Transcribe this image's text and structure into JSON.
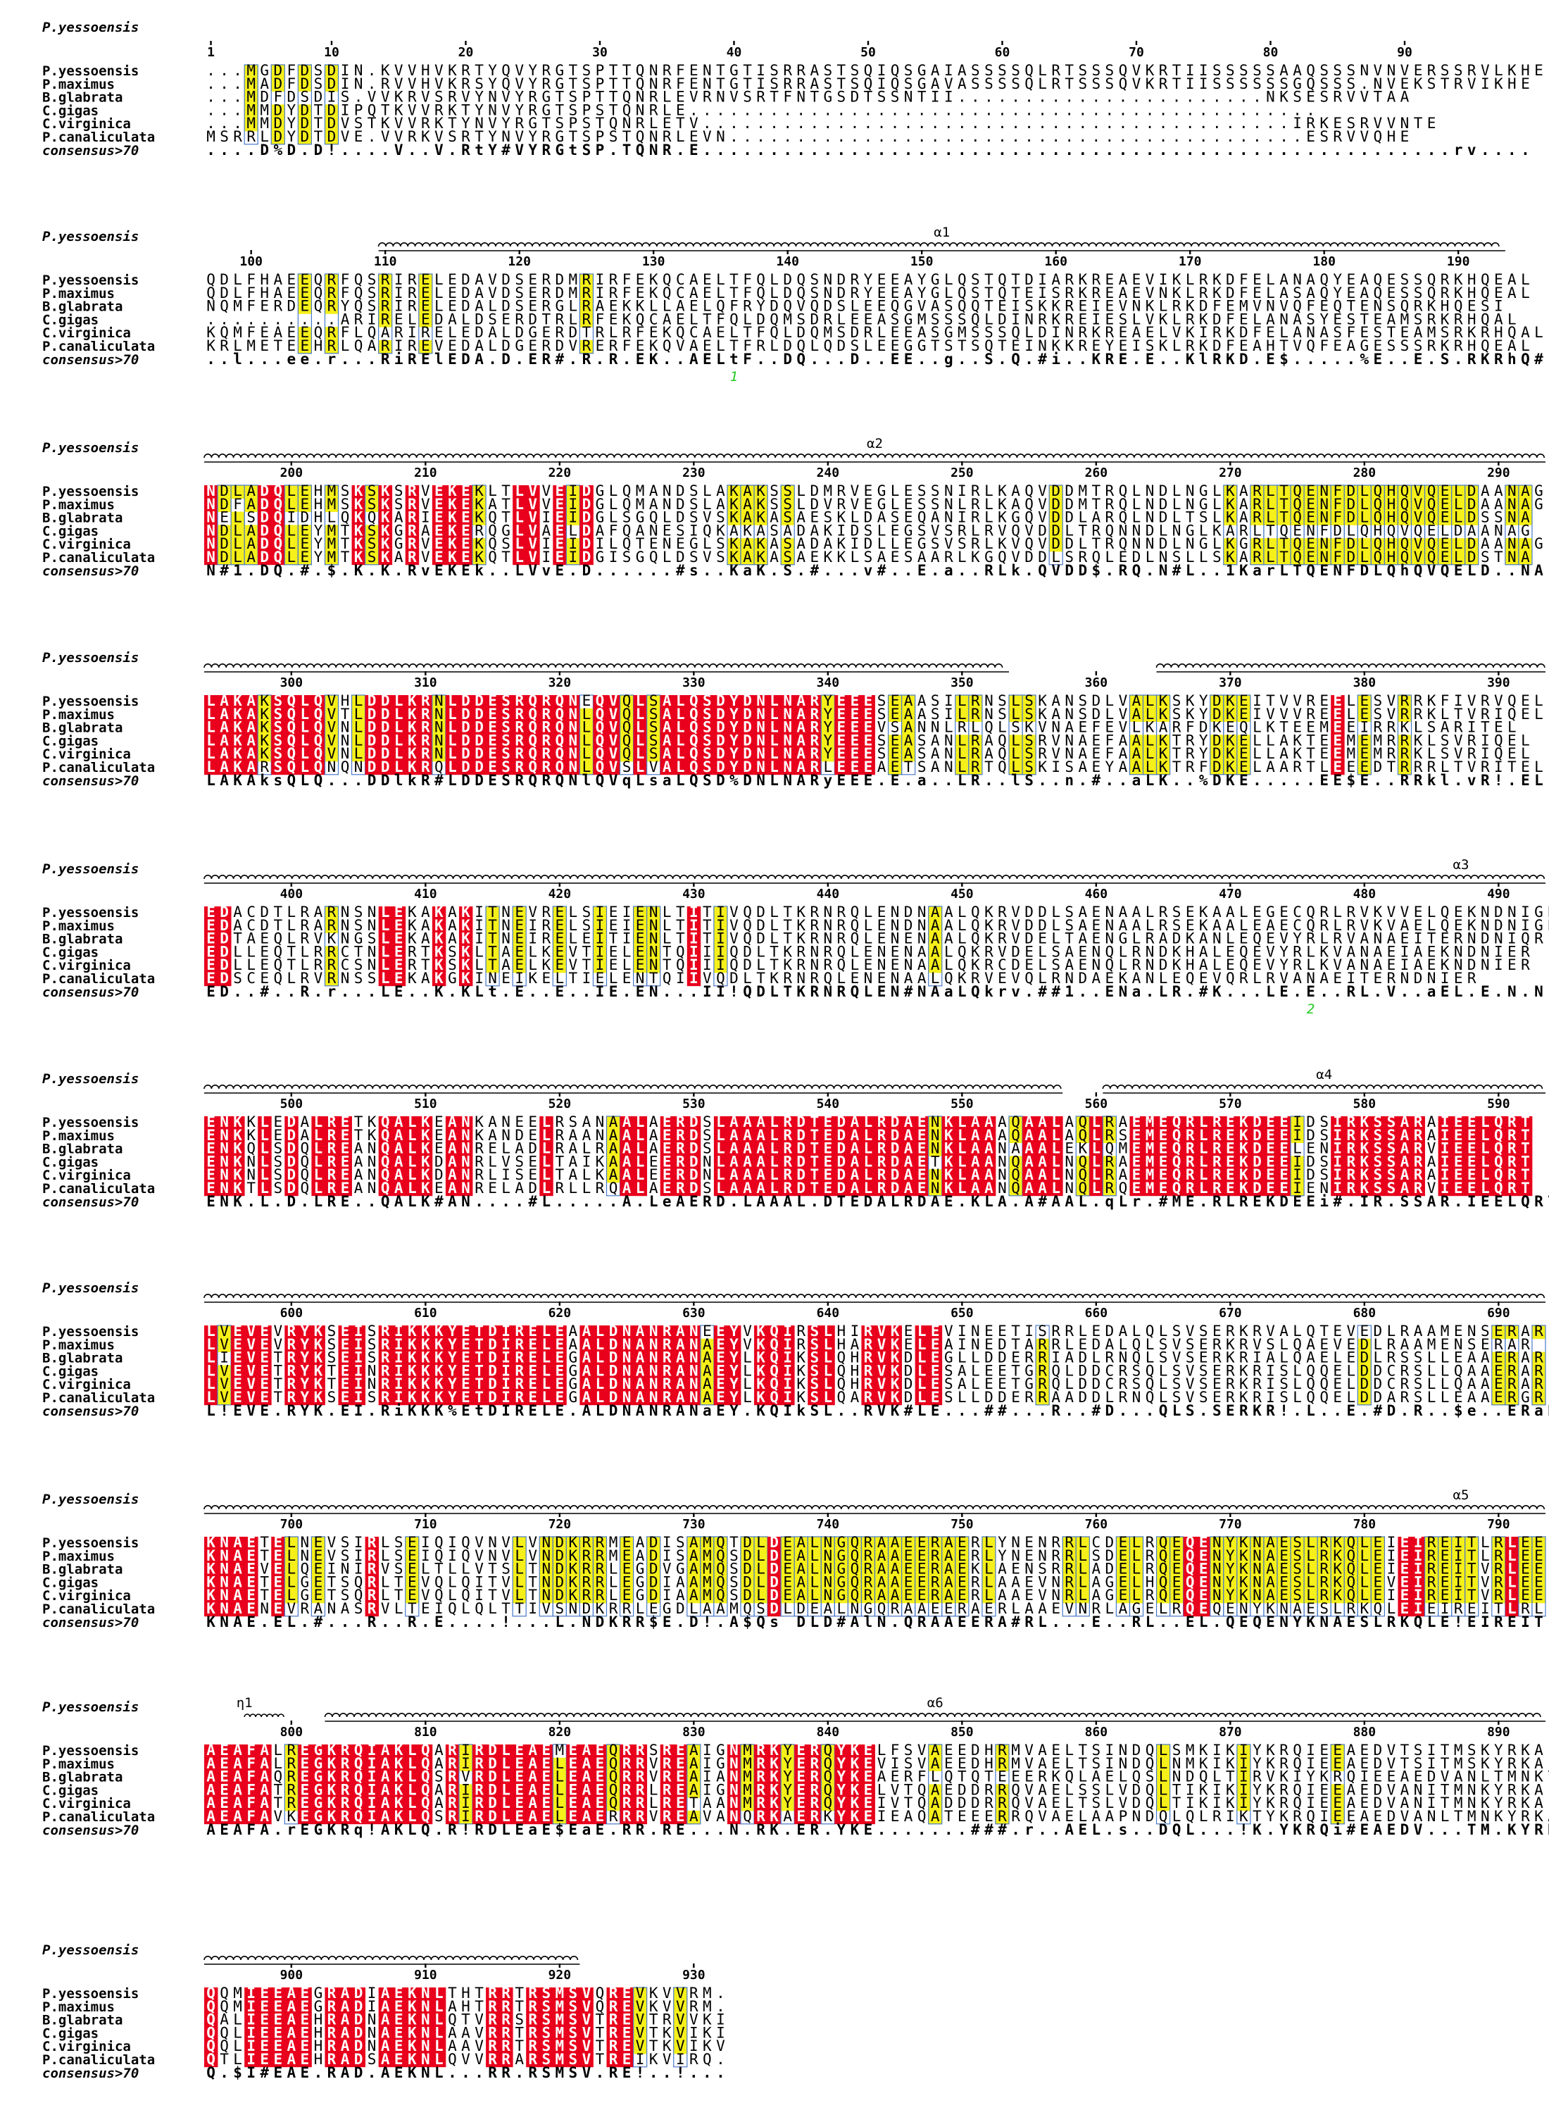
{
  "reference": "P.yessoensis",
  "consensus_label": "consensus>70",
  "sequence_names": [
    "P.yessoensis",
    "P.maximus",
    "B.glabrata",
    "C.gigas",
    "C.virginica",
    "P.canaliculata"
  ],
  "colors": {
    "identical": "#e8001c",
    "similar": "#f5ef1a",
    "frame": "#4878c8",
    "similar_border": "#2d55c8",
    "marker": "#22cc22"
  },
  "blocks": [
    {
      "start": 1,
      "seqs": [
        "...MGDFDSDIN.KVVHVKRTYQVYRGTSPTTQNRFENTGTISRRASTSQIQSGAIASSSSQLRTSSSQVKRTIISSSSSAAQSSSNVNVERSSRVLKHE",
        "...MADFDSDIN.RVVHVKRSYQVYRGTSPTTQNRFENTGTISRRASTSQIQSGAVASSSSQLRTSSSQVKRTIISSSSSSGQSSS.NVEKSTRVIKHE",
        "...MDFDSDIS.VVKRVSRVYNVYRGTSPTTQNRLEVRNVSRTFNTGSDTSSNTII.......................NKSESRVVTAA",
        "...MMDYDTDIPQTKVVRKTYNVYRGTSPSTQNRLE...............................................",
        "...MMDYDTDVSTKVVRKTYNVYRGTSPSTQNRLETV............................................IRKESRVVNTE",
        "MSRRLDYDTDVE.VVRKVSRTYNVYRGTSPSTQNRLEVN...........................................ESRVVQHE"
      ],
      "consensus": "....D%D.D!....V..V.RtY#VYRGtSP.TQNR.E........................................................rv....",
      "ticks": [
        1,
        10,
        20,
        30,
        40,
        50,
        60,
        70,
        80,
        90
      ],
      "structure": [],
      "markers": []
    },
    {
      "start": 97,
      "seqs": [
        "QDLFHAEEQRFQSRIRELEDAVDSERDMRIRFEKQCAELTFQLDQSNDRYEEAYGLQSTQTDIARKREAEVIKLRKDFELANAQYEAQESSQRKHQEAL",
        "QDLFHAEEQRFQSRIRELEDAVDSERDMRIRFEKQCAELTFQLDQSNDRYEEAYGLQSTQTEISRKREAEVNKLRKDFELASAQYEAQESSQRKHQEAL",
        "NQMFERDEQRYQSRIRELEDALDSERGLRAEKKLLAELQFRYDQVQDSLEEQGVASQQTEISKKREIEVNKLRKDFEMVNVQFEQTENSQRKHQESI",
        "..........ARIRELEDALDSERDTRLRFEKQCAELTFQLDQMSDRLEEASGMSSSQLDINRKREIESLVKLRKDFELANASYESTEAMSRKRHQAL",
        "KQMFEAEEQRFLQARIRELEDALDGERDTRLRFEKQCAELTFQLDQMSDRLEEASGMSSSQLDINRKREAELVKIRKDFELANASFESTEAMSRKRHQAL",
        "KRLMETEEHRLQARIREVEDALDGERDVRERFEKQVAELTFRLDQLQDSLEEGGTSTSQTEINKKREYEISKLRKDFEAHTVQFEAGESSSRKRHQEAL"
      ],
      "consensus": "..l...ee.r...RiRElEDA.D.ER#.R.R.EK..AELtF..DQ...D..EE..g..S.Q.#i..KRE.E..KlRKD.E$.....%E..E.S.RKRhQ#..",
      "ticks": [
        100,
        110,
        120,
        130,
        140,
        150,
        160,
        170,
        180,
        190
      ],
      "structure": [
        {
          "type": "helix",
          "label": "α1",
          "from": 110,
          "to": 193
        }
      ],
      "markers": [
        {
          "label": "1",
          "pos": 136
        }
      ]
    },
    {
      "start": 194,
      "seqs": [
        "NDLADQLEHMSKSKSRVEKEKLTLVVEIDGLQMANDSLAKAKSSLDMRVEGLESSNIRLKAQVDDMTRQLNDLNGLKARLTQENFDLQHQVQELDAANAG",
        "NDFADQLEHMSKSKSRVEKEKATLVVEIDGLQMANDSLAKAKSSLDVRVEGLESSNLRLKAQVDDMTRQLNDLNGLKARLTQENFDLQHQVQELDAANAG",
        "NELSDQIDHLQKQKARIEKEKQTLVIEIDGLSGQLDSVSKAKASAESKLDASEQANIRLKGQVDDLARQLNDLTSLKARLTQENFDLQHQVQELDSSNA",
        "NDLADQLEYMTKSKGRAEKERQGLVAELDAFQANESIQKAKASADAKIDSLEGSVSRLRVQVDDLTRQNNDLNGLKARLTQENFDLQHQVQELDAANAG",
        "NDLADQLEYMTKSKGRVEKEKQSLVIEIDILQTENEGLSKAKASADAKIDLLEGSVSRLKVQVDDLTRQNNDLNGLKGRLTQENFDLQHQVQELDAANAG",
        "NDLADQLEYMTKSKARVEKEKQTLVIEIDGISGQLDSVSKAKASAEKKLSAESAARLKGQVDDLSRQLEDLNSLLSKARLTQENFDLQHQVQELDSTNA"
      ],
      "consensus": "N#1.DQ.#.$.K.K.RvEKEk..LVvE.D......#s..KaK.S.#...v#..E.a..RLk.QVDD$.RQ.N#L..1KarLTQENFDLQhQVQELD..NA.",
      "ticks": [
        200,
        210,
        220,
        230,
        240,
        250,
        260,
        270,
        280,
        290
      ],
      "structure": [
        {
          "type": "helix",
          "label": "α2",
          "from": 194,
          "to": 293
        }
      ],
      "markers": []
    },
    {
      "start": 294,
      "seqs": [
        "LAKAKSQLQVHLDDLKRNLDDESRQRQNEQVQLSALQSDYDNLNARYEEESEAASILRNSLSKANSDLVALKSKYDKEITVVREELESVRRKFIVRVQEL",
        "LAKAKSQLQVTLDDLKRNLDDESRQRQNLQVQLSALQSDYDNLNARYEEESEAASILRNSLSKANSDLVALKSKYDKEIVVVREELESVRRKLTVRIQEL",
        "LAKAKSQLQVNLDDLKRNLDDESRQRQNLQVQLSALQSDYDNLNARYEEEVSANNLRLQLSKVNAEFEVLKARFDKEQLKTEEMEEIRRKLSARITEL",
        "LAKAKSQLQVNLDDLKRNLDDESRQRQNLQVQLSALQSDYDNLNARYEEESEASANLRAQLSRVNAEFAALKTRYDKELLAKTEEMEMRRKLSVRIQEL",
        "LAKAKSQLQVNLDDLKRNLDDESRQRQNLQVQLSALQSDYDNLNARYEEESEASANLRAQLSRVNAEFAALKTRYDKELLAKTEEMEMRRKLSVRIQEL",
        "LAKARSQLQNQNDDLKRQLDDESRQRQNLQVSLVALQSDYDNLNARLEEEAETSANLRTQLSKISAEYAALKTRFDKELAARTLEEEDTRRRLTVRITEL"
      ],
      "consensus": "LAKAksQLQ...DDlkR#LDDESRQRQNlQVqLsaLQSD%DNLNARyEEE.E.a..LR..lS..n.#..aLK..%DKE.....EE$E..RRkl.vR!.EL",
      "ticks": [
        300,
        310,
        320,
        330,
        340,
        350,
        360,
        370,
        380,
        390
      ],
      "structure": [
        {
          "type": "helix",
          "label": "",
          "from": 294,
          "to": 353
        },
        {
          "type": "helix",
          "label": "",
          "from": 365,
          "to": 393
        }
      ],
      "markers": []
    },
    {
      "start": 394,
      "seqs": [
        "EDACDTLRARNSNLEKAKAKITNEVRELSIEIENLTITIVQDLTKRNRQLENDNAALQKRVDDLSAENAALRSEKAALEGECQRLRVKVVELQEKNDNIGR",
        "EDACDTLRARNSNLEKAKAKITNEIRELSIEIENLTITIVQDLTKRNRQLENDNAALQKRVDDLSAENAALRSEKAALEAECQRLRVKVAELQEKNDNIGR",
        "EDTAEQLRVKNGSLEKAKAKITNEIRELEITIENLTITIVQDLTKRNRQLENENAALQKRVDELTAENGLRADKANLEQEVYRLRVANAEITERNDNIQR",
        "EDLLEQTLRRCTNLERTKSKLTAELKEVTIELENTQIIIQDLTKRNRQLENENAALQKRVDELSAENQLRNDKHALEQEVYRLKVANAEIAEKNDNIER",
        "EDLLEQTLRRCSNLERTKSKLTAELKEVTIELENTQIIIQDLTKRNRQLENENAALQKRCDELSAENQLRNDKHALEQEVYRLKVANAEIAEKNDNIER",
        "EDSCEQLRVRNSSLEKAKGKINEIKELTIELENTQIIVQDLTKRNRQLENENAALQKRVEVQLRNDAEKANLEQEVQRLRVANAEITERNDNIER"
      ],
      "consensus": "ED..#..R.r...LE..K.KLt.E..E..IE.EN...II!QDLTKRNRQLEN#NAaLQkrv.##1..ENa.LR.#K...LE.E..RL.V..aEL.E.N.NL.R",
      "ticks": [
        400,
        410,
        420,
        430,
        440,
        450,
        460,
        470,
        480,
        490
      ],
      "structure": [
        {
          "type": "helix",
          "label": "α3",
          "from": 394,
          "to": 493
        }
      ],
      "markers": [
        {
          "label": "2",
          "pos": 476
        }
      ]
    },
    {
      "start": 494,
      "seqs": [
        "ENKKLEDALRETKQALKEANKANEELRSANAALAERDSLAAALRDTEDALRDAENKLAAAQAALAQLRAEMEQRLREKDEEIDSIRKSSARAIEELQRT",
        "ENKKLEDALRETKQALKEANKANDELRAANAALAERDSLAAALRDTEDALRDAENKLAAAQAALAQLRSEMEQRLREKDEEIDSIRKSSARAIEELQRT",
        "ENKQLSDQLREANQALKEANRELADLRALRAALAERDSLAAALRDTEDALRDAENKLAANAAALEKLQMEMEQRLREKDEELENIRKSSARVIEELQRT",
        "ENKNLSDQLREANQALKDANRLVSELTAIKAALEERDNLAAALRDTEDALRDAETKLAANQAALNQLRAEMEQRLREKDEEIDSIRKSSARAIEELQRT",
        "ENKNLSDQLREANQALKDANRLISELTALKAALEERDNLAAALRDTEDALRDAENKLAANQAALNQLRAEMEQRLREKDEEIDSIRKSSARAIEELQRT",
        "ENKTLSDQLREANQALKEANRELADLRLLRQALAERDSLAAALRDTEDALRDAENKLAANQAALNQLRQEMEQRLREKDEEIENIRKSSARVIEELQRT"
      ],
      "consensus": "ENK.L.D.LRE..QALK#AN....#L.....A.LeAERD.LAAAL.DTEDALRDAE.KLA.A#AAL.qLr.#ME.RLREKDEEi#.IR.SSAR.IEELQRT",
      "ticks": [
        500,
        510,
        520,
        530,
        540,
        550,
        560,
        570,
        580,
        590
      ],
      "structure": [
        {
          "type": "helix",
          "label": "",
          "from": 494,
          "to": 557
        },
        {
          "type": "helix",
          "label": "α4",
          "from": 561,
          "to": 593
        }
      ],
      "markers": []
    },
    {
      "start": 594,
      "seqs": [
        "LVEVEVRYKSEISRIKKKYETDIRELEAALDNANRANEEYVKQIRSLHIRVKELEVINEETISRRLEDALQLSVSERKRVALQTEVEDLRAAMENSERAR",
        "LVEVEVRYKSEISRIKKKYETDIRELEAALDNANRANAEYVKQIRSLHARVKELEAINEDTARRLEDALQLSVSERKRVSLQAEVEDLRAAMENSERAR",
        "LIEVETRYKSEISRIKKKYETDIRELEGALDNANRANAEYLKQIKSLQHRVKDLEGLLDDERRIADLRNQLSVSERKRIALQAELEDLRSSLLEAAERAR",
        "LVEVETRYKTEINRIKKKYETDIRELEGALDNANRANAEYLKQIKSLQHRVKDLESALEETGRQLDDCRSQLSVSERKRISLQQELDDCRSLLQAAERAR",
        "LVEVETRYKTEINRIKKKYETDIRELEGALDNANRANAEYLKQIKSLQHRVKDLESALEETGRQLDDCRSQLSVSERKRISLQQELDDCRSLLQAAERAR",
        "LVEVETRYKSEISRIKKKYETDIRELEGALDNANRANAEYLKQIKSLQARVKDLESLLDDERRAADDLRNQLSVSERKRISLQQELDDARSLLEAAERGR"
      ],
      "consensus": "L!EVE.RYK.EI.RiKKK%EtDIRELE.ALDNANRANaEY.KQIkSL..RVK#LE...##...R..#D...QLS.SERKR!.L..E.#D.R..$e..ERaR",
      "ticks": [
        600,
        610,
        620,
        630,
        640,
        650,
        660,
        670,
        680,
        690
      ],
      "structure": [
        {
          "type": "helix",
          "label": "",
          "from": 594,
          "to": 693
        }
      ],
      "markers": []
    },
    {
      "start": 694,
      "seqs": [
        "KNAETELNEVSIRLSEIQIQVNVLVNDKRRMEADISAMQTDLDEALNGQRAAEERAERLYNENRRLCDELRQEQENYKNAESLRKQLEIEIREITLRLEE",
        "KNAETELNEVSIRLSEIQIQVNVLVNDKRRMEADISAMQSDLDEALNGQRAAEERAERLYNENRRLSDELRQEQENYKNAESLRKQLEIEIREITLRLEE",
        "KNAEVELQEINIRVSELTLLVTSLTNDKRRLEGDVGAMQSDLDEALNGQRAAEERAEKLAENSRRLADELRQEQENYKNAESLRKQLEIEIREITVRLEE",
        "KNAETELGETSQRLTEVQLQITVLTNDKRRLEGDIAAMQSDLDEALNGQRAAEERAERLAAEVNRLAGELHQEQENYKNAESLRKQLEVEIREITVRLEE",
        "KNAETELGETSQRLTEVQLQITVLTNDKRRLEGDIAAMQSDLDEALNGQRAAEERAERLAAEVNRLAGELRQEQENYKNAESLRKQLEIEIREITVRLEE",
        "KNAENEVRANASRVLTEIQLQLTTIVSNDKRRLEGDLAAMQSDLDEALNGQRAAEERAERLAAEVNRLAGELRQEQENYKNAESLRKQLEIEIREITLRLEE"
      ],
      "consensus": "KNAE.EL.#...R..R.E....!...L.NDKRR$E.D!.A$Qs DLD#AlN.QRAAEERA#RL...E..RL..EL.QEQENYKNAESLRKQLE!EIREIT.RLEE",
      "ticks": [
        700,
        710,
        720,
        730,
        740,
        750,
        760,
        770,
        780,
        790
      ],
      "structure": [
        {
          "type": "helix",
          "label": "α5",
          "from": 694,
          "to": 793
        }
      ],
      "markers": []
    },
    {
      "start": 794,
      "seqs": [
        "AEAFALREGKRQIAKLQARIRDLEAEMEAEQRRSREAIGNMRKYERQYKELFSVAEEDHRMVAELTSINDQLSMKIKIYKRQIEEAEDVTSITMSKYRKA",
        "AEAFALREGKRQIAKLQARIRDLEAELEAEQRRVREAIGNMRKYERQYKEVISVAEEDHRMVAELTSINDQLNMKIKIYKRQIEEAEDVTSITMSKYRKA",
        "AEAFAQREGKRQIAKLQSRVRDLEAELEAEQRRVREAIANMRKYERQYKEAERFLQTQTEEERKQLAELQSLNDQLTIRVKIYKRQIEEAEDVANLTMNKYRKA",
        "AEAFATREGKRQIAKLQARIRDLEAELEAEQRRLREAIGNMRKYERQYKELVTQAEDDRRQVAELSSLVDQLTIKIKIYKRQIEEAEDVANITMNKYRKA",
        "AEAFATREGKRQIAKLQARIRDLEAELEAEQRRLRETAANMRKYERQYKEIVTQADDDRRQVAELTSLVDQLTIKIKIYKRQIEEAEDVANITMNKYRKA",
        "AEAFAVKEGKRQIAKLQSRIRDLEAELEAERRRVREAVANQRKAERKYKEIEAQATEEERRQVAELAAPNDQLQLRIKTYKRQIEEAEDVANLTMNKYRKA"
      ],
      "consensus": "AEAFA.rEGKRq!AKLQ.R!RDLEaE$EaE.RR.RE...N.RK.ER.YKE.......###.r..AEL.s..DQL...!K.YKRQi#EAEDV...TM.KYRKA",
      "ticks": [
        800,
        810,
        820,
        830,
        840,
        850,
        860,
        870,
        880,
        890
      ],
      "structure": [
        {
          "type": "turn",
          "label": "η1",
          "from": 797,
          "to": 799
        },
        {
          "type": "helix",
          "label": "α6",
          "from": 803,
          "to": 893
        }
      ],
      "markers": []
    },
    {
      "start": 894,
      "seqs": [
        "QQMIEEAEGRADIAEKNLTHTRRTRSMSVQREVKVVRM.",
        "QQMIEEAEGRADIAEKNLAHTRRTRSMSVQREVKVVRM.",
        "QALIEEAEHRADNAEKNLQTVRRSRSMSVTREVTRVVKI",
        "QQLIEEAEHRADNAEKNLAAVRRTRSMSVTREVTKVIKI",
        "QQLIEEAEHRADNAEKNLAAVRRTRSMSVTREVTKVIKV",
        "QTLIEEAEHRADSAEKNLQVVRRARSMSVTREIKVIRQ."
      ],
      "consensus": "Q.$I#EAE.RAD.AEKNL...RR.RSMSV.RE!..!...",
      "ticks": [
        900,
        910,
        920,
        930
      ],
      "structure": [
        {
          "type": "helix",
          "label": "",
          "from": 894,
          "to": 921
        }
      ],
      "markers": []
    }
  ]
}
